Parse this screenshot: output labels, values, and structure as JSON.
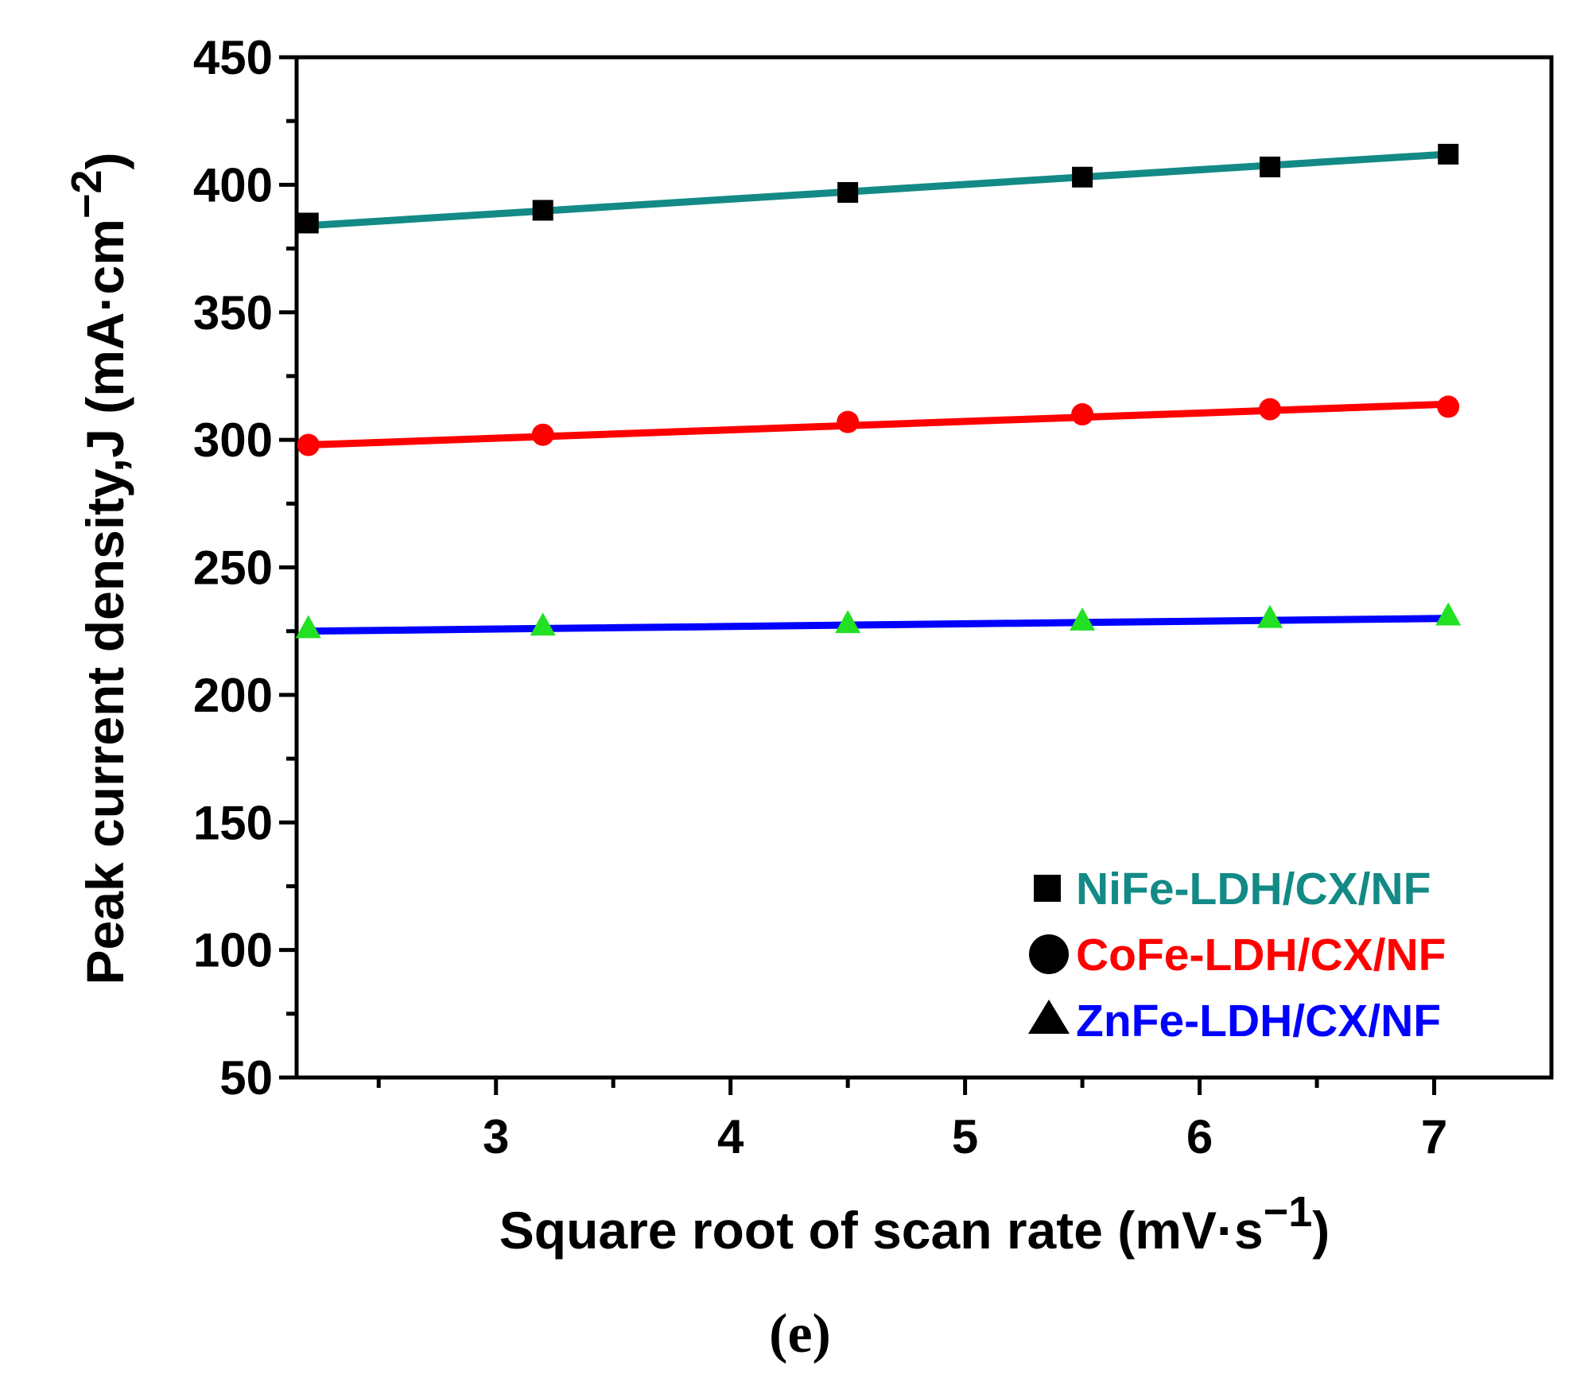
{
  "chart_data": {
    "type": "line",
    "title": "",
    "xlabel": "Square root of scan rate (mV·s⁻¹)",
    "xlabel_main": "Square root of scan rate",
    "xlabel_unit": "mV·s",
    "xlabel_exp": "−1",
    "ylabel": "Peak current density,J (mA·cm⁻²)",
    "ylabel_main": "Peak current density,J",
    "ylabel_unit": "mA·cm",
    "ylabel_exp": "−2",
    "xlim": [
      2.15,
      7.5
    ],
    "ylim": [
      50,
      450
    ],
    "xticks": [
      3,
      4,
      5,
      6,
      7
    ],
    "xtick_labels": [
      "3",
      "4",
      "5",
      "6",
      "7"
    ],
    "yticks": [
      50,
      100,
      150,
      200,
      250,
      300,
      350,
      400,
      450
    ],
    "ytick_labels": [
      "50",
      "100",
      "150",
      "200",
      "250",
      "300",
      "350",
      "400",
      "450"
    ],
    "x": [
      2.2,
      3.2,
      4.5,
      5.5,
      6.3,
      7.06
    ],
    "series": [
      {
        "name": "NiFe-LDH/CX/NF",
        "marker": "square",
        "marker_color": "#000000",
        "line_color": "#138a86",
        "values": [
          385,
          390,
          397,
          403,
          407,
          412
        ],
        "fit": [
          384,
          412
        ]
      },
      {
        "name": "CoFe-LDH/CX/NF",
        "marker": "circle",
        "marker_color": "#ff0000",
        "line_color": "#ff0000",
        "values": [
          298,
          302,
          307,
          310,
          312,
          313
        ],
        "fit": [
          298,
          314
        ]
      },
      {
        "name": "ZnFe-LDH/CX/NF",
        "marker": "triangle",
        "marker_color": "#22e022",
        "line_color": "#0000ff",
        "values": [
          226,
          227,
          228,
          229,
          230,
          231
        ],
        "fit": [
          225,
          230
        ]
      }
    ],
    "legend_position": "bottom-right",
    "panel_label": "(e)"
  }
}
